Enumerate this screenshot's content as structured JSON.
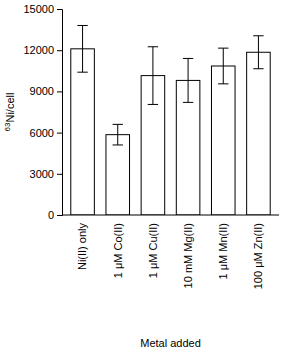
{
  "chart_data": {
    "type": "bar",
    "y_label": "63Ni/cell",
    "x_label": "Metal added",
    "categories": [
      "Ni(II) only",
      "1 μM Co(II)",
      "1 μM Cu(II)",
      "10 mM Mg(II)",
      "1 μM Mn(II)",
      "100 μM Zn(II)"
    ],
    "values": [
      12100,
      5850,
      10150,
      9800,
      10850,
      11850
    ],
    "errors": [
      1700,
      750,
      2100,
      1600,
      1300,
      1200
    ],
    "color": "#ffffff",
    "ylim": [
      0,
      15000
    ],
    "yticks": [
      0,
      3000,
      6000,
      9000,
      12000,
      15000
    ],
    "grid": false
  }
}
